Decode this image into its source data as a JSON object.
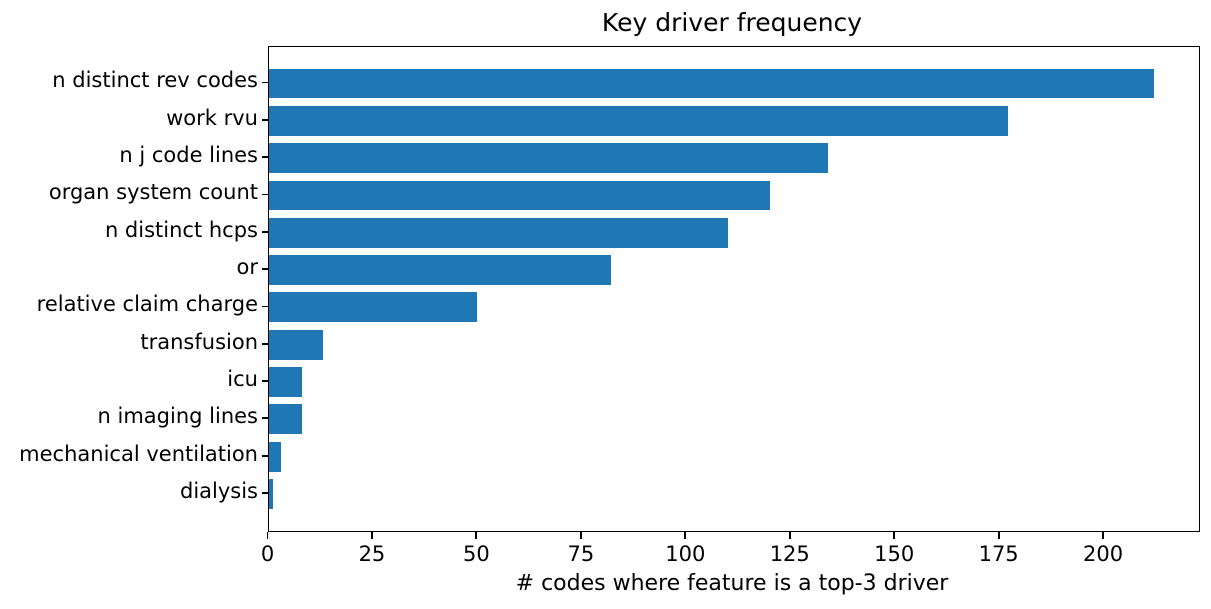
{
  "chart_data": {
    "type": "bar",
    "orientation": "horizontal",
    "title": "Key driver frequency",
    "xlabel": "# codes where feature is a top-3 driver",
    "ylabel": "",
    "categories": [
      "n distinct rev codes",
      "work rvu",
      "n j code lines",
      "organ system count",
      "n distinct hcps",
      "or",
      "relative claim charge",
      "transfusion",
      "icu",
      "n imaging lines",
      "mechanical ventilation",
      "dialysis"
    ],
    "values": [
      212,
      177,
      134,
      120,
      110,
      82,
      50,
      13,
      8,
      8,
      3,
      1
    ],
    "xticks": [
      0,
      25,
      50,
      75,
      100,
      125,
      150,
      175,
      200
    ],
    "xlim": [
      0,
      222.6
    ],
    "bar_color": "#1f77b4",
    "spine_color": "#000000",
    "text_color": "#000000",
    "grid": false,
    "legend": null
  }
}
